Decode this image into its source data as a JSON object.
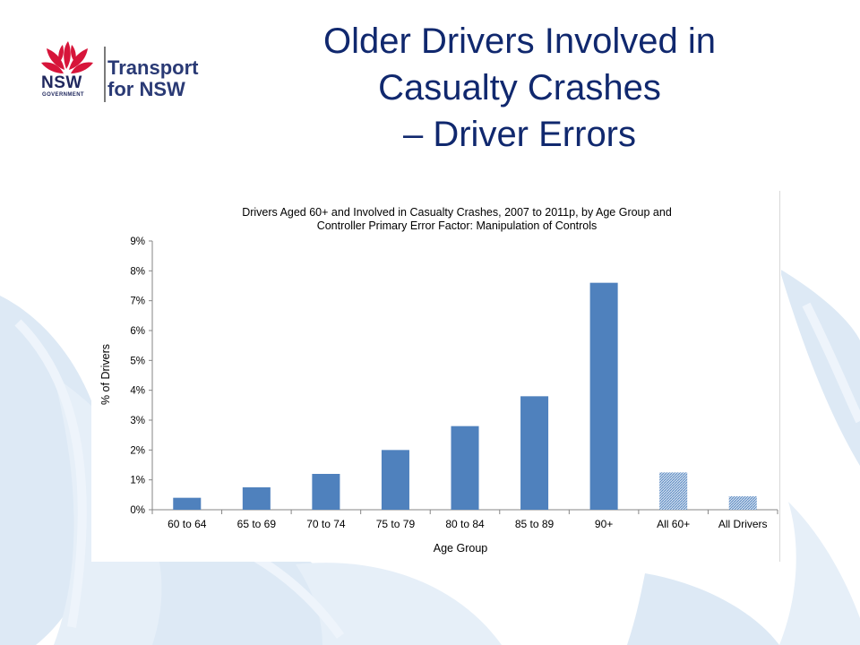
{
  "slide": {
    "title_lines": [
      "Older Drivers Involved in",
      "Casualty Crashes",
      "– Driver Errors"
    ]
  },
  "logo": {
    "nsw": "NSW",
    "government": "GOVERNMENT",
    "line1": "Transport",
    "line2": "for NSW"
  },
  "colors": {
    "title": "#10286e",
    "bar": "#4f81bd",
    "bar_hatched": "#9db8da",
    "waratah": "#d7153a",
    "background_art": "#dbe9f6"
  },
  "chart_data": {
    "type": "bar",
    "title_lines": [
      "Drivers Aged 60+ and Involved in Casualty Crashes, 2007 to 2011p, by Age Group and",
      "Controller Primary Error Factor: Manipulation of Controls"
    ],
    "xlabel": "Age Group",
    "ylabel": "% of Drivers",
    "ylim": [
      0,
      9
    ],
    "yticks": [
      "0%",
      "1%",
      "2%",
      "3%",
      "4%",
      "5%",
      "6%",
      "7%",
      "8%",
      "9%"
    ],
    "categories": [
      "60 to 64",
      "65 to 69",
      "70 to 74",
      "75 to 79",
      "80 to 84",
      "85 to 89",
      "90+",
      "All 60+",
      "All Drivers"
    ],
    "values": [
      0.4,
      0.75,
      1.2,
      2.0,
      2.8,
      3.8,
      7.6,
      1.25,
      0.45
    ],
    "hatched_categories": [
      "All 60+",
      "All Drivers"
    ],
    "grid": false,
    "legend": "none"
  }
}
